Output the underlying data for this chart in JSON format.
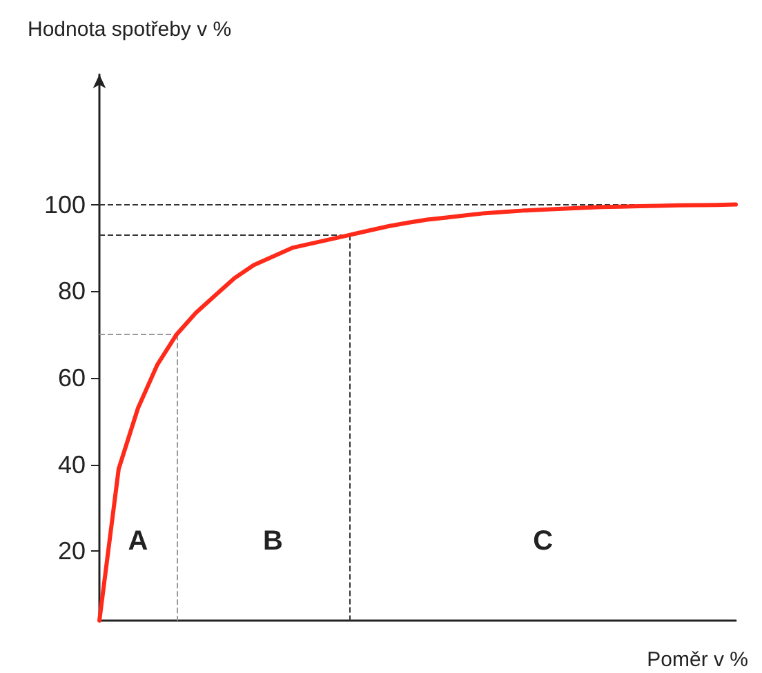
{
  "chart_data": {
    "type": "line",
    "xlabel": "Poměr v %",
    "ylabel": "Hodnota spotřeby v %",
    "categories": [
      null,
      null,
      null,
      null,
      null,
      null,
      null,
      null,
      null,
      null,
      null,
      null,
      null,
      null,
      null,
      null,
      null,
      null,
      null,
      null,
      null,
      null,
      null,
      null,
      null,
      null,
      null,
      null,
      null,
      null,
      null,
      null,
      null,
      null
    ],
    "series": [
      {
        "color": "#ff2a1a",
        "values": [
          4,
          39,
          53,
          63,
          70,
          75,
          79,
          83,
          86,
          88,
          90,
          91,
          92,
          93,
          94,
          95,
          95.8,
          96.5,
          97,
          97.5,
          98,
          98.3,
          98.6,
          98.8,
          99,
          99.2,
          99.4,
          99.5,
          99.6,
          99.7,
          99.8,
          99.85,
          99.9,
          100
        ]
      }
    ],
    "ylim": [
      4,
      130
    ],
    "yticks": [
      20,
      40,
      60,
      80,
      100
    ],
    "ref_lines": [
      {
        "axis": "y",
        "value": 100,
        "line_style": "dashed",
        "color": "#333333"
      },
      {
        "axis": "y",
        "value": 93,
        "line_style": "dashed",
        "color": "#333333"
      },
      {
        "axis": "y",
        "value": 70,
        "line_style": "dashed",
        "color": "#999999"
      }
    ],
    "annotations": [
      "A",
      "B",
      "C"
    ],
    "grid": false,
    "marker": "none",
    "line_style": "solid"
  }
}
